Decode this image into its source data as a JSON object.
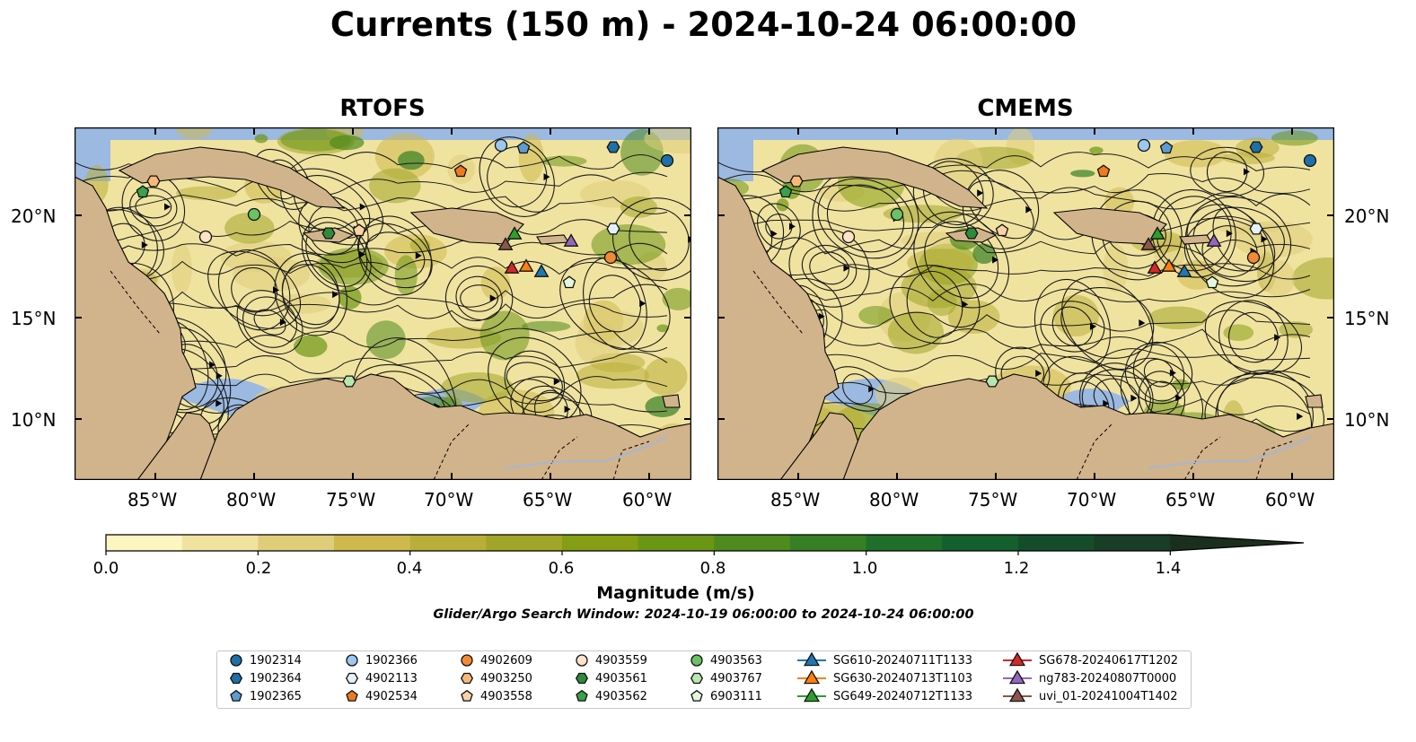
{
  "title": "Currents (150 m) - 2024-10-24 06:00:00",
  "panels": [
    {
      "title": "RTOFS"
    },
    {
      "title": "CMEMS"
    }
  ],
  "lat_labels": [
    "20°N",
    "15°N",
    "10°N"
  ],
  "lon_labels": [
    "85°W",
    "80°W",
    "75°W",
    "70°W",
    "65°W",
    "60°W"
  ],
  "colorbar": {
    "label": "Magnitude (m/s)",
    "ticks": [
      "0.0",
      "0.2",
      "0.4",
      "0.6",
      "0.8",
      "1.0",
      "1.2",
      "1.4"
    ],
    "colors": [
      "#fdf6c1",
      "#f0e3a0",
      "#e0cd7a",
      "#cfb94e",
      "#b9ae3a",
      "#a1a528",
      "#869e14",
      "#6b9515",
      "#4f8a1e",
      "#367f24",
      "#1f6e2a",
      "#135f2d",
      "#154d2b",
      "#193d27",
      "#1b2f1e"
    ]
  },
  "search_window": "Glider/Argo Search Window: 2024-10-19 06:00:00 to 2024-10-24 06:00:00",
  "map_colors": {
    "ocean": "#9bb9e1",
    "land": "#d1b38c"
  },
  "legend": [
    {
      "label": "1902314",
      "marker": "circle",
      "color": "#1f6fa8"
    },
    {
      "label": "1902364",
      "marker": "hexagon",
      "color": "#1f6fa8"
    },
    {
      "label": "1902365",
      "marker": "pentagon",
      "color": "#5d9bd1"
    },
    {
      "label": "1902366",
      "marker": "circle",
      "color": "#9cc8ef"
    },
    {
      "label": "4902113",
      "marker": "hexagon",
      "color": "#e4f1fb"
    },
    {
      "label": "4902534",
      "marker": "pentagon",
      "color": "#f07a1e"
    },
    {
      "label": "4902609",
      "marker": "circle",
      "color": "#f28a35"
    },
    {
      "label": "4903250",
      "marker": "hexagon",
      "color": "#f9b87a"
    },
    {
      "label": "4903558",
      "marker": "pentagon",
      "color": "#fbd2a6"
    },
    {
      "label": "4903559",
      "marker": "circle",
      "color": "#fde3ca"
    },
    {
      "label": "4903561",
      "marker": "hexagon",
      "color": "#2e8b3a"
    },
    {
      "label": "4903562",
      "marker": "pentagon",
      "color": "#3aa04a"
    },
    {
      "label": "4903563",
      "marker": "circle",
      "color": "#69c264"
    },
    {
      "label": "4903767",
      "marker": "hexagon",
      "color": "#b7e7ad"
    },
    {
      "label": "6903111",
      "marker": "pentagon",
      "color": "#e4f7dd"
    },
    {
      "label": "SG610-20240711T1133",
      "marker": "triangle",
      "color": "#1f77b4"
    },
    {
      "label": "SG630-20240713T1103",
      "marker": "triangle",
      "color": "#ff7f0e"
    },
    {
      "label": "SG649-20240712T1133",
      "marker": "triangle",
      "color": "#2ca02c"
    },
    {
      "label": "SG678-20240617T1202",
      "marker": "triangle",
      "color": "#d62728"
    },
    {
      "label": "ng783-20240807T0000",
      "marker": "triangle",
      "color": "#9467bd"
    },
    {
      "label": "uvi_01-20241004T1402",
      "marker": "triangle",
      "color": "#8c564b"
    }
  ]
}
